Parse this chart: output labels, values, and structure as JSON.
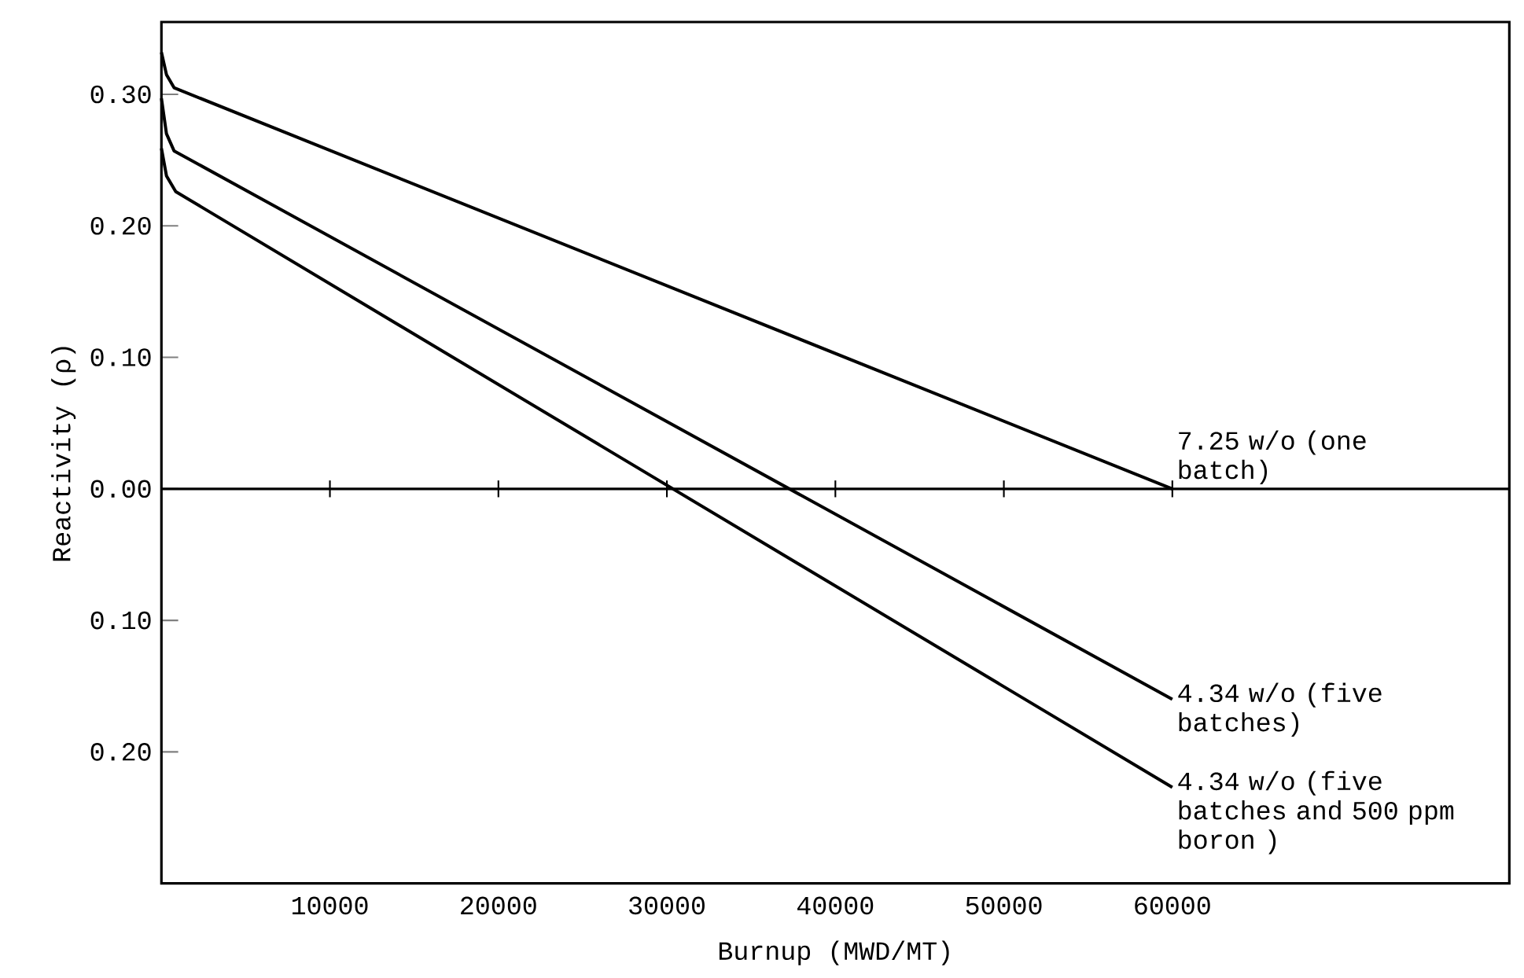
{
  "chart_data": {
    "type": "line",
    "xlabel": "Burnup (MWD/MT)",
    "ylabel": "Reactivity (ρ)",
    "xlim": [
      0,
      80000
    ],
    "ylim": [
      -0.3,
      0.355
    ],
    "xticks": [
      10000,
      20000,
      30000,
      40000,
      50000,
      60000
    ],
    "yticks": [
      {
        "value": -0.2,
        "label": "0.20"
      },
      {
        "value": -0.1,
        "label": "0.10"
      },
      {
        "value": 0,
        "label": "0.00"
      },
      {
        "value": 0.1,
        "label": "0.10"
      },
      {
        "value": 0.2,
        "label": "0.20"
      },
      {
        "value": 0.3,
        "label": "0.30"
      }
    ],
    "series": [
      {
        "color": "#000000",
        "x": [
          0,
          300,
          750,
          60000
        ],
        "values": [
          0.332,
          0.315,
          0.305,
          0.0
        ]
      },
      {
        "color": "#000000",
        "x": [
          0,
          300,
          750,
          60000
        ],
        "values": [
          0.297,
          0.27,
          0.257,
          -0.16
        ]
      },
      {
        "color": "#000000",
        "x": [
          0,
          300,
          850,
          60000
        ],
        "values": [
          0.259,
          0.238,
          0.226,
          -0.227
        ]
      }
    ],
    "ref_lines": [
      {
        "axis": "y",
        "value": 0,
        "color": "#000000"
      }
    ],
    "annotations": [
      "7.25 w/o (one batch)",
      "4.34 w/o (five batches)",
      "4.34 w/o (five batches and 500 ppm boron )"
    ],
    "grid": false,
    "marker": "none",
    "line_style": "solid"
  }
}
